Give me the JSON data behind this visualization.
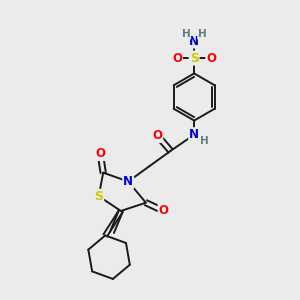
{
  "bg_color": "#ebebeb",
  "atom_colors": {
    "C": "#000000",
    "N": "#0000cc",
    "O": "#ff0000",
    "S": "#cccc00",
    "H": "#5f8080"
  },
  "bond_color": "#1a1a1a",
  "bond_width": 1.4,
  "fig_width": 3.0,
  "fig_height": 3.0,
  "dpi": 100
}
